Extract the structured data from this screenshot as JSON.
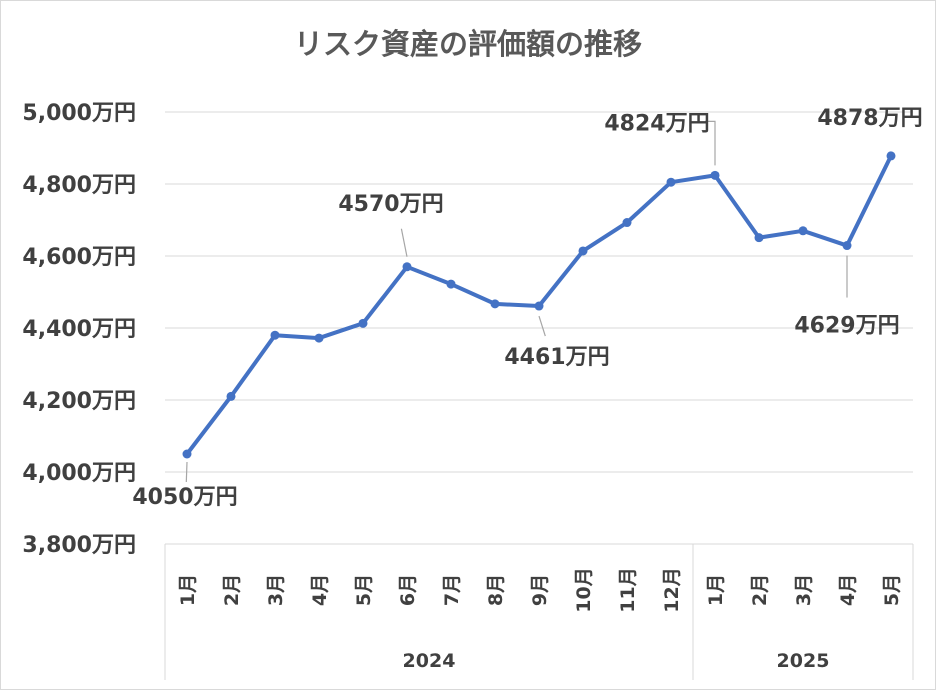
{
  "chart_data": {
    "type": "line",
    "title": "リスク資産の評価額の推移",
    "xlabel": "",
    "ylabel": "",
    "unit": "万円",
    "ylim": [
      3800,
      5000
    ],
    "y_ticks": [
      3800,
      4000,
      4200,
      4400,
      4600,
      4800,
      5000
    ],
    "y_tick_labels": [
      "3,800万円",
      "4,000万円",
      "4,200万円",
      "4,400万円",
      "4,600万円",
      "4,800万円",
      "5,000万円"
    ],
    "grid": true,
    "legend": "none",
    "categories": [
      "1月",
      "2月",
      "3月",
      "4月",
      "5月",
      "6月",
      "7月",
      "8月",
      "9月",
      "10月",
      "11月",
      "12月",
      "1月",
      "2月",
      "3月",
      "4月",
      "5月"
    ],
    "groups": [
      {
        "label": "2024",
        "count": 12
      },
      {
        "label": "2025",
        "count": 5
      }
    ],
    "series": [
      {
        "values": [
          4050,
          4210,
          4380,
          4372,
          4413,
          4570,
          4522,
          4467,
          4461,
          4614,
          4693,
          4805,
          4824,
          4651,
          4670,
          4629,
          4878
        ],
        "color": "#4472C4"
      }
    ],
    "data_labels": [
      {
        "index": 0,
        "text": "4050万円"
      },
      {
        "index": 5,
        "text": "4570万円"
      },
      {
        "index": 8,
        "text": "4461万円"
      },
      {
        "index": 12,
        "text": "4824万円"
      },
      {
        "index": 15,
        "text": "4629万円"
      },
      {
        "index": 16,
        "text": "4878万円"
      }
    ]
  }
}
